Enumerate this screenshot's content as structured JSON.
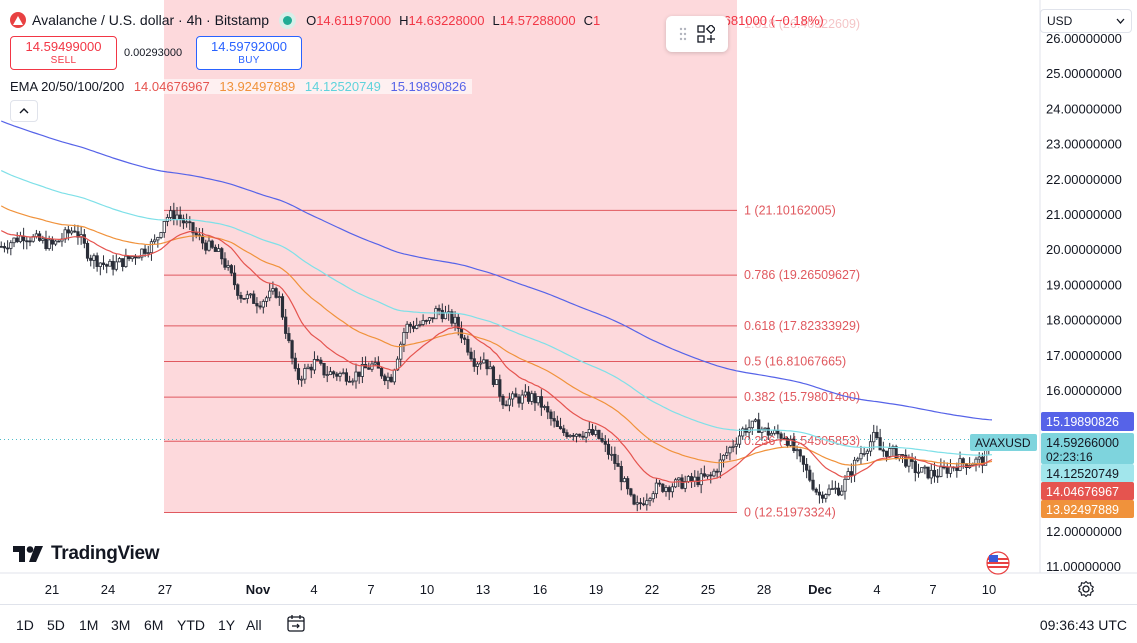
{
  "header": {
    "symbol_title": "Avalanche / U.S. dollar · 4h · Bitstamp",
    "open_label": "O",
    "open": "14.61197000",
    "high_label": "H",
    "high": "14.63228000",
    "low_label": "L",
    "low": "14.57288000",
    "close_label": "C",
    "close_partial": "1",
    "close_tail": "00",
    "change": "−0.02681000 (−0.18%)"
  },
  "trade": {
    "sell_price": "14.59499000",
    "sell_label": "SELL",
    "spread": "0.00293000",
    "buy_price": "14.59792000",
    "buy_label": "BUY"
  },
  "ema": {
    "label": "EMA 20/50/100/200",
    "v20": "14.04676967",
    "v50": "13.92497889",
    "v100": "14.12520749",
    "v200": "15.19890826",
    "colors": {
      "ema20": "#e5544f",
      "ema50": "#f0923b",
      "ema100": "#7ee0e8",
      "ema200": "#5663e8"
    }
  },
  "currency": {
    "value": "USD"
  },
  "fib": {
    "levels": [
      {
        "ratio": "1.618",
        "price": 26.40322609,
        "label": "1.618 (26.40322609)",
        "opacity": 0.35
      },
      {
        "ratio": "1",
        "price": 21.10162005,
        "label": "1 (21.10162005)"
      },
      {
        "ratio": "0.786",
        "price": 19.26509627,
        "label": "0.786 (19.26509627)"
      },
      {
        "ratio": "0.618",
        "price": 17.82333929,
        "label": "0.618 (17.82333929)"
      },
      {
        "ratio": "0.5",
        "price": 16.81067665,
        "label": "0.5 (16.81067665)"
      },
      {
        "ratio": "0.382",
        "price": 15.798014,
        "label": "0.382 (15.79801400)"
      },
      {
        "ratio": "0.236",
        "price": 14.54505853,
        "label": "0.236 (14.54505853)"
      },
      {
        "ratio": "0",
        "price": 12.51973324,
        "label": "0 (12.51973324)"
      }
    ]
  },
  "price_axis": {
    "ticks": [
      "26.00000000",
      "25.00000000",
      "24.00000000",
      "23.00000000",
      "22.00000000",
      "21.00000000",
      "20.00000000",
      "19.00000000",
      "18.00000000",
      "17.00000000",
      "16.00000000",
      "12.00000000",
      "11.00000000"
    ],
    "tick_values": [
      26,
      25,
      24,
      23,
      22,
      21,
      20,
      19,
      18,
      17,
      16,
      12,
      11
    ],
    "ema200_tag": "15.19890826",
    "last_price_tag": "14.59266000",
    "countdown": "02:23:16",
    "ema100_tag": "14.12520749",
    "ema20_tag": "14.04676967",
    "ema50_tag": "13.92497889",
    "symbol_tag": "AVAXUSD"
  },
  "time_axis": {
    "labels": [
      "21",
      "24",
      "27",
      "Nov",
      "4",
      "7",
      "10",
      "13",
      "16",
      "19",
      "22",
      "25",
      "28",
      "Dec",
      "4",
      "7",
      "10"
    ]
  },
  "branding": {
    "name": "TradingView"
  },
  "bottom_bar": {
    "timeframes": [
      "1D",
      "5D",
      "1M",
      "3M",
      "6M",
      "YTD",
      "1Y",
      "All"
    ],
    "clock": "09:36:43 UTC"
  },
  "chart_data": {
    "type": "candlestick",
    "title": "Avalanche / U.S. dollar · 4h · Bitstamp",
    "ylim": [
      10.5,
      26.5
    ],
    "note_points": [
      {
        "x": "21",
        "close": 20.1
      },
      {
        "x": "24",
        "close": 19.5
      },
      {
        "x": "27",
        "close": 20.9
      },
      {
        "x": "Nov",
        "close": 18.7
      },
      {
        "x": "4",
        "close": 16.8
      },
      {
        "x": "7",
        "close": 16.7
      },
      {
        "x": "10",
        "close": 17.9
      },
      {
        "x": "13",
        "close": 16.9
      },
      {
        "x": "16",
        "close": 15.6
      },
      {
        "x": "19",
        "close": 14.7
      },
      {
        "x": "22",
        "close": 13.2
      },
      {
        "x": "25",
        "close": 13.5
      },
      {
        "x": "28",
        "close": 14.8
      },
      {
        "x": "Dec",
        "close": 13.1
      },
      {
        "x": "4",
        "close": 14.3
      },
      {
        "x": "7",
        "close": 13.6
      },
      {
        "x": "10",
        "close": 14.59
      }
    ],
    "series": [
      {
        "name": "EMA 20",
        "color": "#e5544f"
      },
      {
        "name": "EMA 50",
        "color": "#f0923b"
      },
      {
        "name": "EMA 100",
        "color": "#7ee0e8"
      },
      {
        "name": "EMA 200",
        "color": "#5663e8"
      }
    ]
  }
}
